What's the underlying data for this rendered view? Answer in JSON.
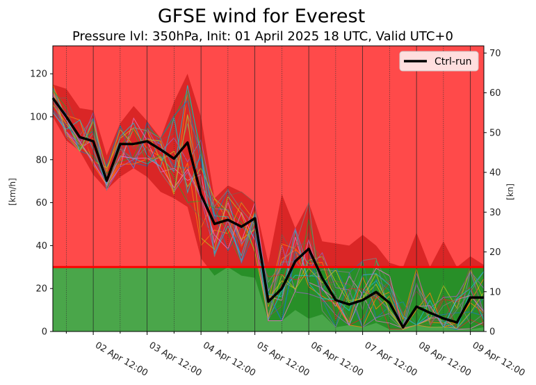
{
  "chart_data": {
    "type": "line",
    "title": "GFSE wind for Everest",
    "subtitle": "Pressure lvl: 350hPa, Init: 01 April 2025 18 UTC, Valid UTC+0",
    "ylabel_left": "[km/h]",
    "ylabel_right": "[kn]",
    "ylim_left": [
      0,
      133
    ],
    "ylim_right": [
      0,
      71.8
    ],
    "yticks_left": [
      0,
      20,
      40,
      60,
      80,
      100,
      120
    ],
    "yticks_right": [
      0,
      10,
      20,
      30,
      40,
      50,
      60,
      70
    ],
    "xlim_hours": [
      0,
      192
    ],
    "xtick_labels": [
      "02 Apr 12:00",
      "03 Apr 12:00",
      "04 Apr 12:00",
      "05 Apr 12:00",
      "06 Apr 12:00",
      "07 Apr 12:00",
      "08 Apr 12:00",
      "09 Apr 12:00"
    ],
    "xtick_hours": [
      18,
      42,
      66,
      90,
      114,
      138,
      162,
      186
    ],
    "minor_xtick_hours": [
      6,
      30,
      54,
      78,
      102,
      126,
      150,
      174
    ],
    "threshold_kmh": 30,
    "legend": {
      "entries": [
        "Ctrl-run"
      ],
      "placement": "top-right"
    },
    "colors": {
      "danger": "#ff4a4a",
      "safe": "#4aa64a",
      "threshold": "#ff0000",
      "spread_red": "#d42020",
      "spread_green": "#228b22",
      "ctrl": "#000000"
    },
    "hours": [
      0,
      6,
      12,
      18,
      24,
      30,
      36,
      42,
      48,
      54,
      60,
      66,
      72,
      78,
      84,
      90,
      96,
      102,
      108,
      114,
      120,
      126,
      132,
      138,
      144,
      150,
      156,
      162,
      168,
      174,
      180,
      186,
      192
    ],
    "series": [
      {
        "name": "Ctrl-run",
        "values": [
          108.7,
          100,
          90.5,
          88.6,
          70.2,
          87.3,
          87.3,
          88.6,
          84.7,
          80.5,
          88,
          63.7,
          50.1,
          52,
          48.8,
          52.7,
          13.9,
          20,
          32.7,
          38.5,
          24.9,
          14.6,
          12.6,
          14.6,
          18.4,
          13.3,
          1.9,
          11.6,
          8.7,
          6.1,
          4.2,
          15.8,
          15.8
        ]
      }
    ],
    "spread_max": [
      115,
      113,
      104,
      103,
      82,
      97,
      105,
      98,
      90,
      107,
      120,
      100,
      62,
      68,
      65,
      60,
      32,
      64,
      48,
      60,
      42,
      41,
      40,
      45,
      40,
      32,
      30,
      46,
      30,
      42,
      30,
      35,
      31
    ],
    "spread_min": [
      100,
      89,
      84,
      73,
      66,
      72,
      76,
      72,
      65,
      62,
      58,
      34,
      26,
      30,
      26,
      25,
      5,
      5,
      10,
      6,
      8,
      2,
      3,
      2,
      4,
      1,
      1,
      3,
      2,
      2,
      1,
      1,
      2
    ]
  }
}
